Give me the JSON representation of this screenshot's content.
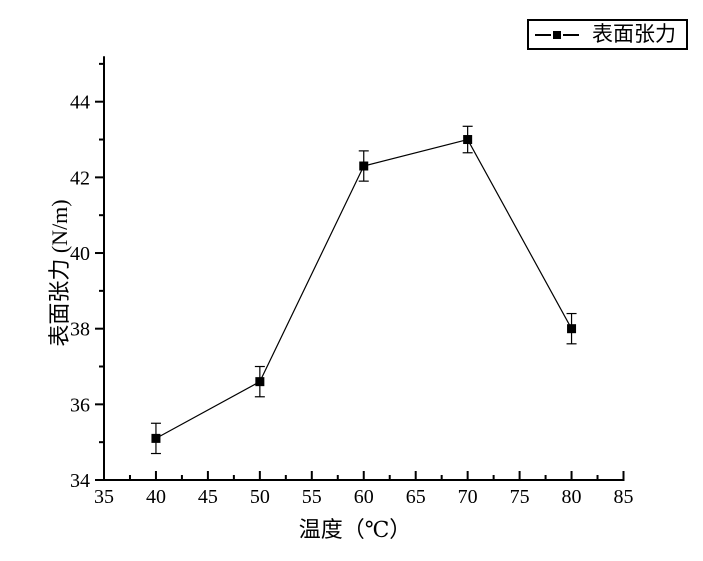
{
  "colors": {
    "foreground": "#000000",
    "background": "#ffffff"
  },
  "legend": {
    "label": "表面张力",
    "marker": "filled-square"
  },
  "chart_data": {
    "type": "line",
    "title": "",
    "xlabel": "温度（℃）",
    "ylabel": "表面张力 (N/m)",
    "x": [
      40,
      50,
      60,
      70,
      80
    ],
    "series": [
      {
        "name": "表面张力",
        "values": [
          35.1,
          36.6,
          42.3,
          43.0,
          38.0
        ],
        "yerr": [
          0.4,
          0.4,
          0.4,
          0.35,
          0.4
        ],
        "marker": "filled-square",
        "line_style": "solid",
        "color": "#000000"
      }
    ],
    "xlim": [
      35,
      85
    ],
    "ylim": [
      34,
      45.2
    ],
    "xticks": [
      35,
      40,
      45,
      50,
      55,
      60,
      65,
      70,
      75,
      80,
      85
    ],
    "yticks": [
      34,
      36,
      38,
      40,
      42,
      44
    ],
    "x_minor_step": 2.5,
    "y_minor_step": 1,
    "grid": false,
    "legend_position": "top-right"
  }
}
